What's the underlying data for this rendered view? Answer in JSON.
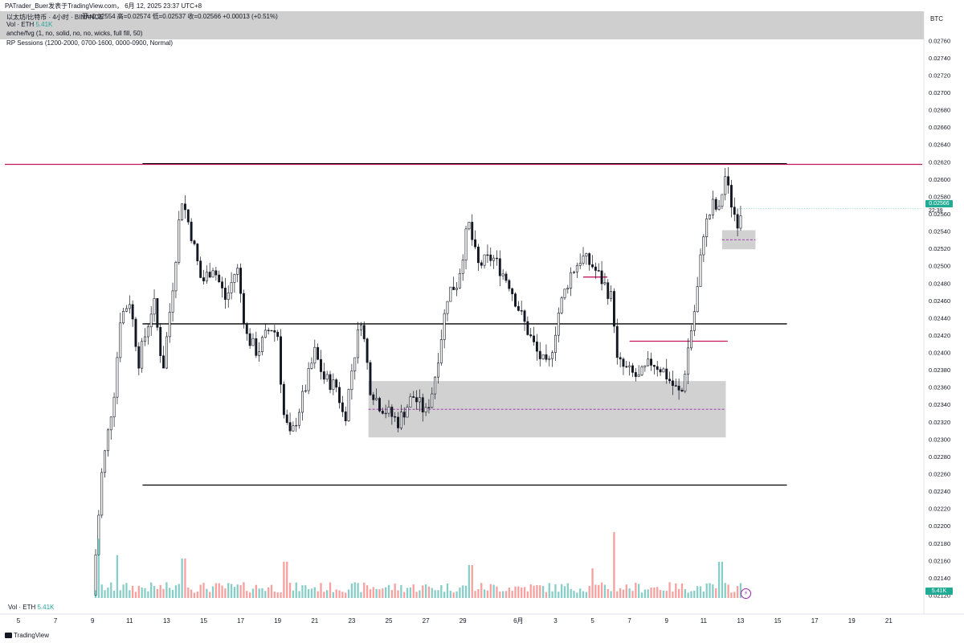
{
  "header": {
    "author_line": "PATrader_Buer发表于TradingView.com， 6月 12, 2025 23:37 UTC+8",
    "pair_title": "以太坊/比特币 · 4小时 · BINANCE",
    "ohlc": "开=0.02554  高=0.02574  低=0.02537  收=0.02566  +0.00013 (+0.51%)",
    "vol_label": "Vol · ETH",
    "vol_value": "5.41K",
    "indicator_1": "anche/fvg (1, no, solid, no, no, wicks, full fill, 50)",
    "indicator_2": "RP Sessions (1200-2000, 0700-1600, 0000-0900, Normal)"
  },
  "axis": {
    "currency": "BTC",
    "last_price": "0.02566",
    "countdown": "22:39",
    "vol_last": "5.41K"
  },
  "footer": {
    "vol_label": "Vol · ETH",
    "vol_value": "5.41K",
    "brand": "TradingView"
  },
  "colors": {
    "up": "#26a69a",
    "down": "#ef5350",
    "line_red": "#c2185b",
    "fvg": "#cfcfcf",
    "midline": "#9c27b0"
  },
  "chart_data": {
    "type": "candlestick",
    "interval": "4h",
    "ylim": [
      0.0212,
      0.0277
    ],
    "y_ticks": [
      "0.02760",
      "0.02740",
      "0.02720",
      "0.02700",
      "0.02680",
      "0.02660",
      "0.02640",
      "0.02620",
      "0.02600",
      "0.02580",
      "0.02560",
      "0.02540",
      "0.02520",
      "0.02500",
      "0.02480",
      "0.02460",
      "0.02440",
      "0.02420",
      "0.02400",
      "0.02380",
      "0.02360",
      "0.02340",
      "0.02320",
      "0.02300",
      "0.02280",
      "0.02260",
      "0.02240",
      "0.02220",
      "0.02200",
      "0.02180",
      "0.02160",
      "0.02140",
      "0.02120"
    ],
    "x_ticks": [
      {
        "label": "5",
        "day": 5
      },
      {
        "label": "7",
        "day": 7
      },
      {
        "label": "9",
        "day": 9
      },
      {
        "label": "11",
        "day": 11
      },
      {
        "label": "13",
        "day": 13
      },
      {
        "label": "15",
        "day": 15
      },
      {
        "label": "17",
        "day": 17
      },
      {
        "label": "19",
        "day": 19
      },
      {
        "label": "21",
        "day": 21
      },
      {
        "label": "23",
        "day": 23
      },
      {
        "label": "25",
        "day": 25
      },
      {
        "label": "27",
        "day": 27
      },
      {
        "label": "29",
        "day": 29
      },
      {
        "label": "6月",
        "day": 32
      },
      {
        "label": "3",
        "day": 34
      },
      {
        "label": "5",
        "day": 36
      },
      {
        "label": "7",
        "day": 38
      },
      {
        "label": "9",
        "day": 40
      },
      {
        "label": "11",
        "day": 42
      },
      {
        "label": "13",
        "day": 44
      },
      {
        "label": "15",
        "day": 46
      },
      {
        "label": "17",
        "day": 48
      },
      {
        "label": "19",
        "day": 50
      },
      {
        "label": "21",
        "day": 52
      }
    ],
    "path": [
      [
        9.0,
        0.0212
      ],
      [
        9.5,
        0.0226
      ],
      [
        10.2,
        0.0236
      ],
      [
        10.5,
        0.0244
      ],
      [
        11.0,
        0.0246
      ],
      [
        11.5,
        0.0239
      ],
      [
        12.3,
        0.0246
      ],
      [
        12.8,
        0.0238
      ],
      [
        13.4,
        0.0249
      ],
      [
        13.8,
        0.0258
      ],
      [
        14.3,
        0.0254
      ],
      [
        14.9,
        0.0248
      ],
      [
        15.5,
        0.025
      ],
      [
        16.2,
        0.0246
      ],
      [
        16.8,
        0.025
      ],
      [
        17.3,
        0.0242
      ],
      [
        17.9,
        0.024
      ],
      [
        18.6,
        0.0243
      ],
      [
        19.0,
        0.0242
      ],
      [
        19.3,
        0.0233
      ],
      [
        19.7,
        0.023
      ],
      [
        20.5,
        0.0236
      ],
      [
        21.0,
        0.024
      ],
      [
        21.5,
        0.0237
      ],
      [
        22.2,
        0.0236
      ],
      [
        22.6,
        0.0232
      ],
      [
        23.0,
        0.0238
      ],
      [
        23.5,
        0.0244
      ],
      [
        24.0,
        0.0236
      ],
      [
        24.5,
        0.0234
      ],
      [
        25.0,
        0.0233
      ],
      [
        25.5,
        0.0232
      ],
      [
        26.3,
        0.0235
      ],
      [
        27.0,
        0.0233
      ],
      [
        27.4,
        0.0236
      ],
      [
        28.2,
        0.0247
      ],
      [
        28.7,
        0.0248
      ],
      [
        29.3,
        0.0255
      ],
      [
        29.8,
        0.025
      ],
      [
        30.6,
        0.0251
      ],
      [
        31.5,
        0.0248
      ],
      [
        32.2,
        0.0244
      ],
      [
        33.0,
        0.024
      ],
      [
        33.6,
        0.0238
      ],
      [
        34.2,
        0.0245
      ],
      [
        34.8,
        0.0249
      ],
      [
        35.4,
        0.0251
      ],
      [
        36.0,
        0.025
      ],
      [
        36.6,
        0.0248
      ],
      [
        37.1,
        0.0246
      ],
      [
        37.3,
        0.0239
      ],
      [
        37.8,
        0.0238
      ],
      [
        38.5,
        0.0237
      ],
      [
        39.2,
        0.0239
      ],
      [
        39.8,
        0.0238
      ],
      [
        40.4,
        0.0236
      ],
      [
        40.8,
        0.0235
      ],
      [
        41.2,
        0.0241
      ],
      [
        41.6,
        0.0246
      ],
      [
        42.0,
        0.0254
      ],
      [
        42.5,
        0.0257
      ],
      [
        42.9,
        0.0256
      ],
      [
        43.1,
        0.0261
      ],
      [
        43.4,
        0.0258
      ],
      [
        43.8,
        0.0255
      ],
      [
        44.1,
        0.0257
      ]
    ],
    "volume_spikes": [
      [
        9.3,
        0.9
      ],
      [
        13.9,
        0.6
      ],
      [
        37.2,
        1.0
      ],
      [
        42.9,
        0.55
      ],
      [
        19.4,
        0.55
      ],
      [
        29.4,
        0.5
      ],
      [
        36.0,
        0.45
      ],
      [
        10.3,
        0.65
      ]
    ],
    "levels": [
      {
        "name": "resistance-top",
        "price": 0.02617,
        "from": 11.7,
        "to": 46.5,
        "extended": true,
        "color": "#c2185b"
      },
      {
        "name": "mid-level",
        "price": 0.02433,
        "from": 11.7,
        "to": 46.5,
        "color": "#000000"
      },
      {
        "name": "support-bottom",
        "price": 0.02247,
        "from": 11.7,
        "to": 46.5,
        "color": "#000000"
      },
      {
        "name": "red-level-1",
        "price": 0.02413,
        "from": 38.0,
        "to": 43.3,
        "color": "#c2185b"
      },
      {
        "name": "red-level-2",
        "price": 0.02487,
        "from": 35.5,
        "to": 36.8,
        "color": "#c2185b"
      }
    ],
    "fvg_zones": [
      {
        "price_top": 0.02367,
        "price_bottom": 0.02302,
        "from": 23.9,
        "to": 43.2
      },
      {
        "price_top": 0.02541,
        "price_bottom": 0.02519,
        "from": 43.0,
        "to": 44.8
      }
    ]
  }
}
